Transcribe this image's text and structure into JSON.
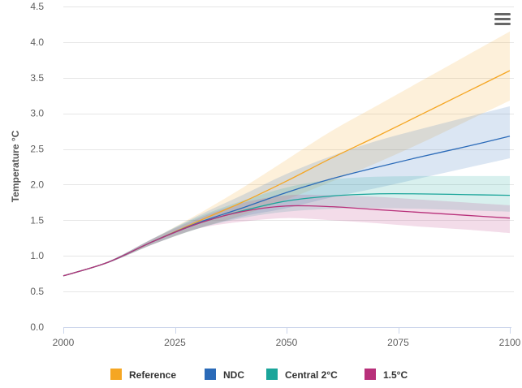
{
  "chart_data": {
    "type": "line",
    "title": "",
    "xlabel": "",
    "ylabel": "Temperature °C",
    "xlim": [
      2000,
      2100
    ],
    "ylim": [
      0.0,
      4.5
    ],
    "x_ticks": [
      "2000",
      "2025",
      "2050",
      "2075",
      "2100"
    ],
    "x_tick_values": [
      2000,
      2025,
      2050,
      2075,
      2100
    ],
    "y_ticks": [
      "0.0",
      "0.5",
      "1.0",
      "1.5",
      "2.0",
      "2.5",
      "3.0",
      "3.5",
      "4.0",
      "4.5"
    ],
    "y_tick_values": [
      0.0,
      0.5,
      1.0,
      1.5,
      2.0,
      2.5,
      3.0,
      3.5,
      4.0,
      4.5
    ],
    "grid": true,
    "legend_position": "bottom-center",
    "x": [
      2000,
      2010,
      2020,
      2030,
      2040,
      2050,
      2060,
      2070,
      2080,
      2090,
      2100
    ],
    "series": [
      {
        "name": "Reference",
        "color": "#f5a623",
        "values": [
          0.72,
          0.91,
          1.2,
          1.48,
          1.75,
          2.05,
          2.37,
          2.67,
          2.98,
          3.29,
          3.6
        ],
        "band_low": [
          0.72,
          0.9,
          1.16,
          1.38,
          1.57,
          1.79,
          2.04,
          2.3,
          2.58,
          2.88,
          3.18
        ],
        "band_high": [
          0.72,
          0.92,
          1.24,
          1.58,
          1.95,
          2.35,
          2.75,
          3.1,
          3.45,
          3.8,
          4.15
        ]
      },
      {
        "name": "NDC",
        "color": "#2a6ab8",
        "values": [
          0.72,
          0.91,
          1.2,
          1.46,
          1.67,
          1.89,
          2.08,
          2.24,
          2.39,
          2.53,
          2.68
        ],
        "band_low": [
          0.72,
          0.9,
          1.16,
          1.38,
          1.55,
          1.67,
          1.82,
          1.95,
          2.09,
          2.23,
          2.37
        ],
        "band_high": [
          0.72,
          0.92,
          1.24,
          1.56,
          1.85,
          2.15,
          2.4,
          2.61,
          2.78,
          2.94,
          3.1
        ]
      },
      {
        "name": "Central 2°C",
        "color": "#1aa59a",
        "values": [
          0.72,
          0.91,
          1.2,
          1.45,
          1.63,
          1.77,
          1.84,
          1.87,
          1.87,
          1.86,
          1.85
        ],
        "band_low": [
          0.72,
          0.9,
          1.16,
          1.38,
          1.53,
          1.62,
          1.66,
          1.67,
          1.66,
          1.64,
          1.62
        ],
        "band_high": [
          0.72,
          0.92,
          1.24,
          1.54,
          1.77,
          1.96,
          2.07,
          2.11,
          2.12,
          2.12,
          2.12
        ]
      },
      {
        "name": "1.5°C",
        "color": "#b8307a",
        "values": [
          0.72,
          0.91,
          1.2,
          1.45,
          1.62,
          1.7,
          1.69,
          1.65,
          1.61,
          1.57,
          1.53
        ],
        "band_low": [
          0.72,
          0.9,
          1.16,
          1.38,
          1.48,
          1.53,
          1.5,
          1.46,
          1.41,
          1.37,
          1.32
        ],
        "band_high": [
          0.72,
          0.92,
          1.24,
          1.52,
          1.74,
          1.85,
          1.85,
          1.83,
          1.79,
          1.75,
          1.71
        ]
      }
    ]
  },
  "menu": {
    "icon": "hamburger-menu-icon"
  }
}
